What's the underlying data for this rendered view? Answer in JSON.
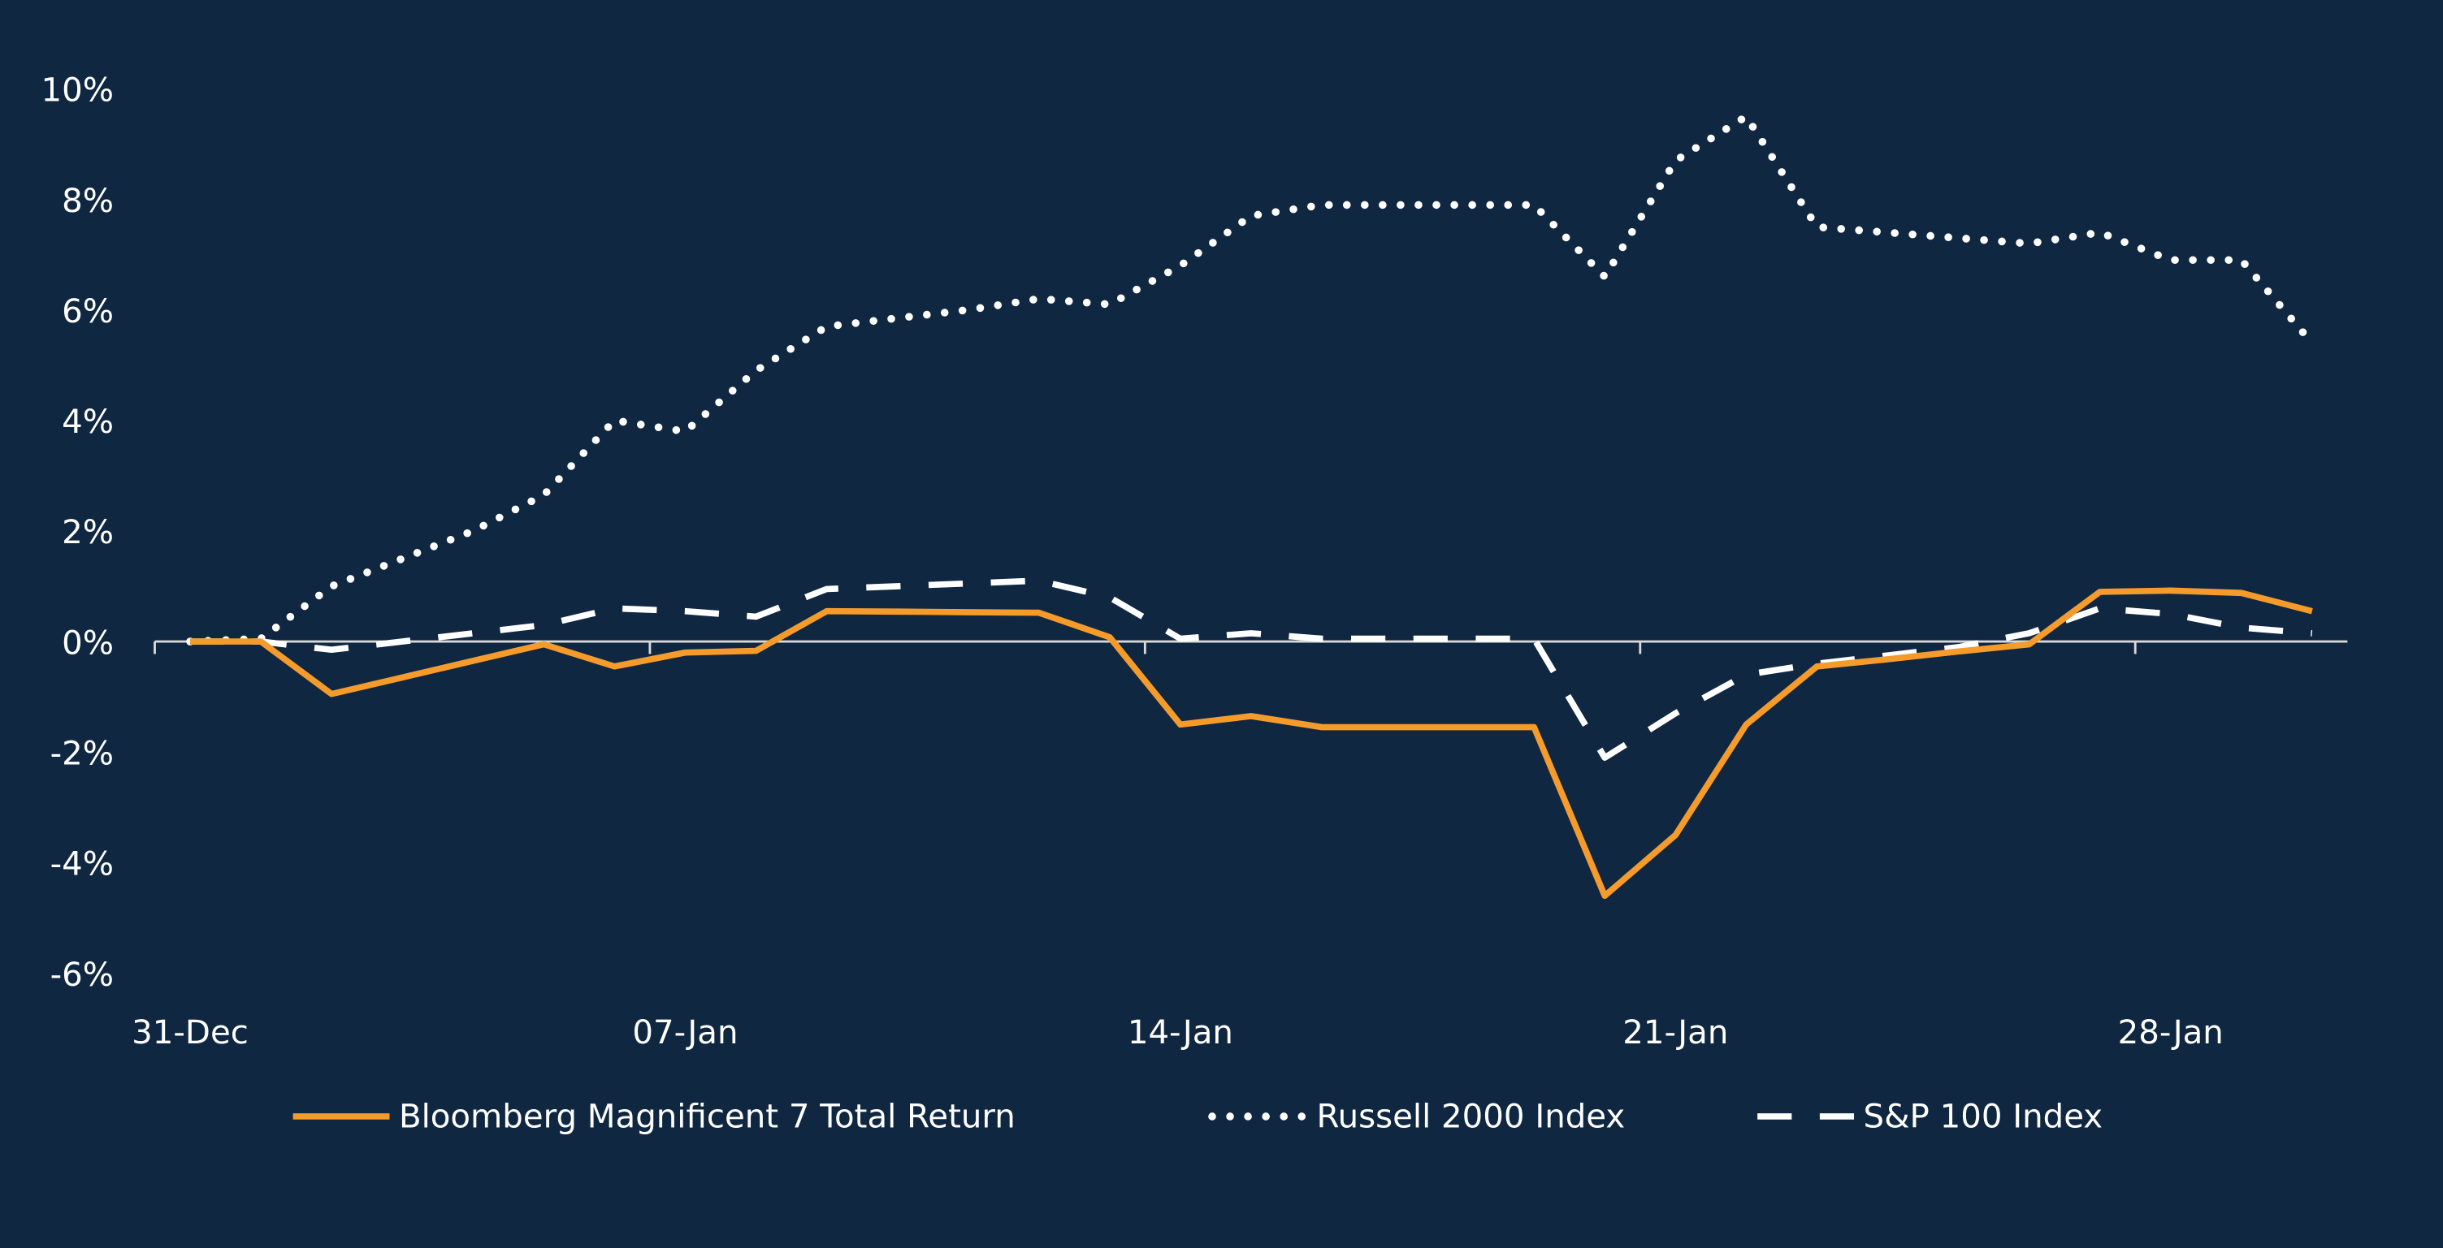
{
  "chart_data": {
    "type": "line",
    "title": "",
    "xlabel": "",
    "ylabel": "",
    "ylim": [
      -6,
      10
    ],
    "yticks": [
      -6,
      -4,
      -2,
      0,
      2,
      4,
      6,
      8,
      10
    ],
    "ytick_labels": [
      "-6%",
      "-4%",
      "-2%",
      "0%",
      "2%",
      "4%",
      "6%",
      "8%",
      "10%"
    ],
    "x_labels": [
      {
        "index": 0,
        "label": "31-Dec"
      },
      {
        "index": 7,
        "label": "07-Jan"
      },
      {
        "index": 14,
        "label": "14-Jan"
      },
      {
        "index": 21,
        "label": "21-Jan"
      },
      {
        "index": 28,
        "label": "28-Jan"
      }
    ],
    "x_count": 31,
    "grid": false,
    "legend_position": "bottom",
    "colors": {
      "background": "#0f2740",
      "orange": "#f59b2c",
      "white": "#ffffff",
      "axis": "#d9d9d9"
    },
    "series": [
      {
        "name": "Bloomberg Magnificent 7 Total Return",
        "style": "solid",
        "color": "#f59b2c",
        "values": [
          0,
          0,
          -0.95,
          -0.65,
          -0.35,
          -0.05,
          -0.45,
          -0.2,
          -0.17,
          0.55,
          0.54,
          0.53,
          0.52,
          0.08,
          -1.5,
          -1.35,
          -1.55,
          -1.55,
          -1.55,
          -1.55,
          -4.6,
          -3.5,
          -1.5,
          -0.45,
          -0.32,
          -0.18,
          -0.05,
          0.9,
          0.92,
          0.88,
          0.55
        ]
      },
      {
        "name": "Russell 2000 Index",
        "style": "dotted",
        "color": "#ffffff",
        "values": [
          0,
          0.05,
          1.0,
          1.5,
          2.0,
          2.65,
          4.0,
          3.8,
          4.9,
          5.7,
          5.85,
          6.0,
          6.2,
          6.1,
          6.8,
          7.7,
          7.9,
          7.9,
          7.9,
          7.9,
          6.6,
          8.7,
          9.5,
          7.5,
          7.4,
          7.3,
          7.2,
          7.4,
          6.9,
          6.9,
          5.4
        ]
      },
      {
        "name": "S&P 100 Index",
        "style": "dashed",
        "color": "#ffffff",
        "values": [
          0,
          0,
          -0.15,
          0,
          0.15,
          0.3,
          0.6,
          0.55,
          0.45,
          0.95,
          1.0,
          1.05,
          1.1,
          0.8,
          0.05,
          0.15,
          0.05,
          0.05,
          0.05,
          0.05,
          -2.1,
          -1.3,
          -0.6,
          -0.4,
          -0.25,
          -0.1,
          0.15,
          0.6,
          0.5,
          0.25,
          0.15
        ]
      }
    ]
  }
}
